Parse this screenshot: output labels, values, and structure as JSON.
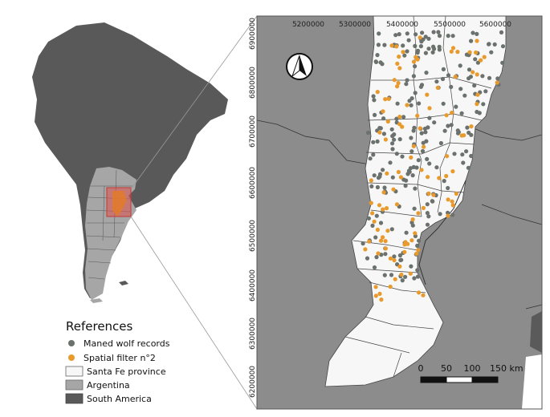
{
  "colors": {
    "south_america": "#595959",
    "argentina": "#a6a6a6",
    "santa_fe": "#f7f7f7",
    "ocean": "#ffffff",
    "inset_bg": "#8c8c8c",
    "records": "#6b716d",
    "filter": "#e89a2c",
    "extent_box": "#e0504a"
  },
  "axes": {
    "x_ticks": [
      "5200000",
      "5300000",
      "5400000",
      "5500000",
      "5600000"
    ],
    "y_ticks": [
      "6900000",
      "6800000",
      "6700000",
      "6600000",
      "6500000",
      "6400000",
      "6300000",
      "6200000"
    ]
  },
  "legend": {
    "title": "References",
    "items": [
      {
        "label": "Maned wolf records",
        "symbol": "circle",
        "color": "#6b716d"
      },
      {
        "label": "Spatial filter n°2",
        "symbol": "circle",
        "color": "#e89a2c"
      },
      {
        "label": "Santa Fe province",
        "symbol": "rect",
        "color": "#f7f7f7"
      },
      {
        "label": "Argentina",
        "symbol": "rect",
        "color": "#a6a6a6"
      },
      {
        "label": "South America",
        "symbol": "rect",
        "color": "#595959"
      }
    ]
  },
  "scale_bar": {
    "labels": [
      "0",
      "50",
      "100",
      "150 km"
    ]
  },
  "north_arrow": {
    "icon": "north-arrow-icon"
  }
}
